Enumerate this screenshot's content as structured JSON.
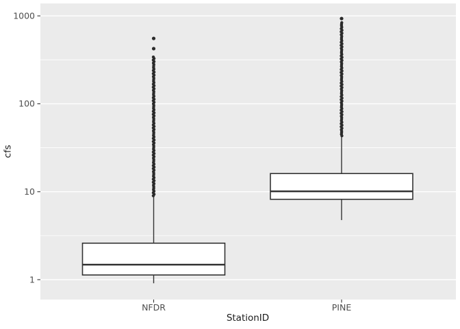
{
  "chart_data": {
    "type": "boxplot",
    "title": "",
    "xlabel": "StationID",
    "ylabel": "cfs",
    "x_categories": [
      "NFDR",
      "PINE"
    ],
    "y_scale": "log10",
    "y_ticks": [
      1,
      10,
      100,
      1000
    ],
    "y_tick_labels": [
      "1",
      "10",
      "100",
      "1000"
    ],
    "y_minor_ticks": [
      3.162,
      31.62,
      316.2
    ],
    "ylim_log": [
      0.594,
      1380
    ],
    "grid": "on",
    "legend": "none",
    "series": [
      {
        "category": "NFDR",
        "min": 0.91,
        "q1": 1.13,
        "median": 1.48,
        "q3": 2.6,
        "whisker_high": 9.0,
        "outliers_dense_range": [
          9.0,
          345
        ],
        "outliers_isolated": [
          424,
          554
        ]
      },
      {
        "category": "PINE",
        "min": 4.76,
        "q1": 8.2,
        "median": 10.1,
        "q3": 16.1,
        "whisker_high": 43.3,
        "outliers_dense_range": [
          43.3,
          845
        ],
        "outliers_isolated": [
          932
        ]
      }
    ],
    "colors": {
      "panel_bg": "#EBEBEB",
      "grid": "#FFFFFF",
      "box_border": "#333333",
      "box_fill": "#FFFFFF",
      "point": "#2B2B2B",
      "tick_mark": "#333333",
      "tick_label": "#4D4D4D",
      "axis_title": "#1A1A1A",
      "outer_bg": "#FFFFFF"
    }
  }
}
